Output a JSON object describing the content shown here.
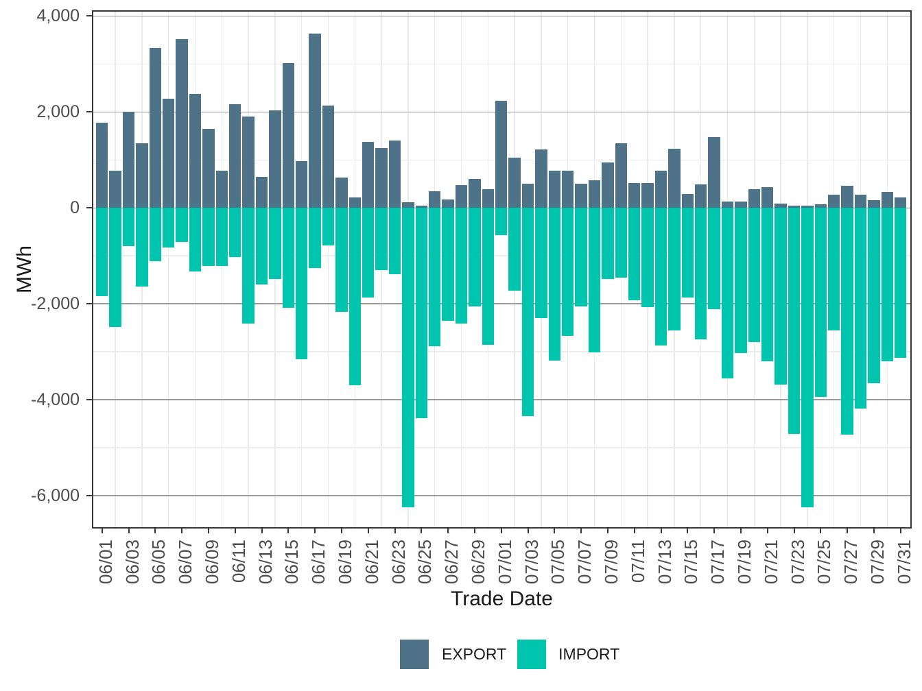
{
  "chart_data": {
    "type": "bar",
    "title": "",
    "xlabel": "Trade Date",
    "ylabel": "MWh",
    "categories": [
      "06/01",
      "06/02",
      "06/03",
      "06/04",
      "06/05",
      "06/06",
      "06/07",
      "06/08",
      "06/09",
      "06/10",
      "06/11",
      "06/12",
      "06/13",
      "06/14",
      "06/15",
      "06/16",
      "06/17",
      "06/18",
      "06/19",
      "06/20",
      "06/21",
      "06/22",
      "06/23",
      "06/24",
      "06/25",
      "06/26",
      "06/27",
      "06/28",
      "06/29",
      "06/30",
      "07/01",
      "07/02",
      "07/03",
      "07/04",
      "07/05",
      "07/06",
      "07/07",
      "07/08",
      "07/09",
      "07/10",
      "07/11",
      "07/12",
      "07/13",
      "07/14",
      "07/15",
      "07/16",
      "07/17",
      "07/18",
      "07/19",
      "07/20",
      "07/21",
      "07/22",
      "07/23",
      "07/24",
      "07/25",
      "07/26",
      "07/27",
      "07/28",
      "07/29",
      "07/30",
      "07/31"
    ],
    "series": [
      {
        "name": "EXPORT",
        "color": "#4E7389",
        "values": [
          1780,
          775,
          2000,
          1340,
          3330,
          2280,
          3520,
          2380,
          1640,
          775,
          2160,
          1910,
          640,
          2030,
          3020,
          970,
          3630,
          2130,
          635,
          215,
          1370,
          1250,
          1400,
          120,
          50,
          340,
          175,
          480,
          600,
          390,
          2240,
          1050,
          500,
          1220,
          770,
          770,
          500,
          580,
          950,
          1350,
          515,
          515,
          770,
          1230,
          295,
          485,
          1480,
          130,
          130,
          390,
          430,
          85,
          45,
          45,
          80,
          275,
          465,
          275,
          160,
          330,
          215
        ]
      },
      {
        "name": "IMPORT",
        "color": "#00C5AE",
        "values": [
          -1840,
          -2490,
          -805,
          -1640,
          -1115,
          -820,
          -705,
          -1320,
          -1215,
          -1215,
          -1020,
          -2420,
          -1595,
          -1485,
          -2085,
          -3160,
          -1255,
          -790,
          -2170,
          -3700,
          -1870,
          -1300,
          -1380,
          -6240,
          -4380,
          -2890,
          -2360,
          -2410,
          -2060,
          -2860,
          -575,
          -1720,
          -4340,
          -2300,
          -3190,
          -2670,
          -2060,
          -3020,
          -1490,
          -1460,
          -1930,
          -2075,
          -2870,
          -2560,
          -1870,
          -2740,
          -2110,
          -3560,
          -3030,
          -2800,
          -3200,
          -3690,
          -4710,
          -6240,
          -3940,
          -2550,
          -4730,
          -4190,
          -3660,
          -3200,
          -3130
        ]
      }
    ],
    "ylim": [
      -6680,
      4120
    ],
    "yticks": {
      "values": [
        4000,
        2000,
        0,
        -2000,
        -4000,
        -6000
      ],
      "labels": [
        "4,000",
        "2,000",
        "0",
        "-2,000",
        "-4,000",
        "-6,000"
      ]
    },
    "ytick_minor": [
      3000,
      1000,
      -1000,
      -3000,
      -5000
    ],
    "xtick_every": 2,
    "grid": {
      "h_major": true,
      "h_minor": true,
      "v_minor": true,
      "v_major": false
    },
    "legend_position": "bottom"
  }
}
